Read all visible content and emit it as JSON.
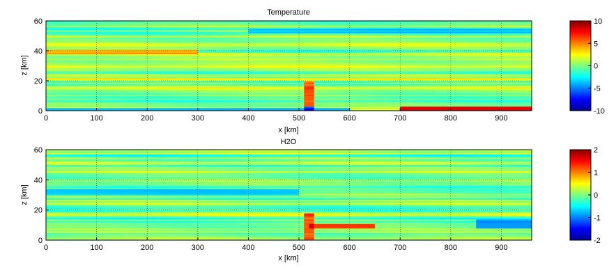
{
  "chart_data": [
    {
      "type": "heatmap",
      "title": "Temperature",
      "xlabel": "x [km]",
      "ylabel": "z [km]",
      "xlim": [
        0,
        960
      ],
      "ylim": [
        0,
        60
      ],
      "x_ticks": [
        "0",
        "100",
        "200",
        "300",
        "400",
        "500",
        "600",
        "700",
        "800",
        "900"
      ],
      "y_ticks": [
        "0",
        "20",
        "40",
        "60"
      ],
      "grid": true,
      "colorbar": {
        "range": [
          -10,
          10
        ],
        "ticks": [
          "10",
          "5",
          "0",
          "-5",
          "-10"
        ]
      },
      "features": [
        {
          "description": "warm band",
          "z_km": [
            38,
            41
          ],
          "x_km": [
            0,
            300
          ],
          "value": 5
        },
        {
          "description": "warm band",
          "z_km": [
            20,
            22
          ],
          "x_km": [
            0,
            960
          ],
          "value": 3
        },
        {
          "description": "cold band",
          "z_km": [
            52,
            55
          ],
          "x_km": [
            400,
            960
          ],
          "value": -4
        },
        {
          "description": "cold band",
          "z_km": [
            0,
            2
          ],
          "x_km": [
            0,
            600
          ],
          "value": -5
        },
        {
          "description": "hot surface layer",
          "z_km": [
            0,
            3
          ],
          "x_km": [
            700,
            960
          ],
          "value": 9
        },
        {
          "description": "dipole anomaly",
          "x_km": 520,
          "z_km": [
            0,
            20
          ],
          "value": 10
        }
      ]
    },
    {
      "type": "heatmap",
      "title": "H2O",
      "xlabel": "x [km]",
      "ylabel": "z [km]",
      "xlim": [
        0,
        960
      ],
      "ylim": [
        0,
        60
      ],
      "x_ticks": [
        "0",
        "100",
        "200",
        "300",
        "400",
        "500",
        "600",
        "700",
        "800",
        "900"
      ],
      "y_ticks": [
        "0",
        "20",
        "40",
        "60"
      ],
      "grid": true,
      "colorbar": {
        "range": [
          -2,
          2
        ],
        "ticks": [
          "2",
          "1",
          "0",
          "-1",
          "-2"
        ]
      },
      "features": [
        {
          "description": "moist plume",
          "x_km": 520,
          "z_km": [
            0,
            18
          ],
          "value": 2
        },
        {
          "description": "moist layer",
          "z_km": [
            8,
            11
          ],
          "x_km": [
            520,
            650
          ],
          "value": 1.5
        },
        {
          "description": "dry band",
          "z_km": [
            30,
            34
          ],
          "x_km": [
            0,
            500
          ],
          "value": -0.8
        },
        {
          "description": "dry patch",
          "z_km": [
            8,
            14
          ],
          "x_km": [
            850,
            960
          ],
          "value": -1
        }
      ]
    }
  ]
}
